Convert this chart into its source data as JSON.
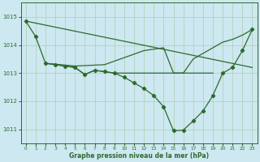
{
  "title": "Graphe pression niveau de la mer (hPa)",
  "bg_color": "#cde8f0",
  "grid_color": "#b0ccb0",
  "line_color": "#2d6a2d",
  "xlim": [
    -0.5,
    23.5
  ],
  "ylim": [
    1010.5,
    1015.5
  ],
  "yticks": [
    1011,
    1012,
    1013,
    1014,
    1015
  ],
  "xticks": [
    0,
    1,
    2,
    3,
    4,
    5,
    6,
    7,
    8,
    9,
    10,
    11,
    12,
    13,
    14,
    15,
    16,
    17,
    18,
    19,
    20,
    21,
    22,
    23
  ],
  "line_straight": {
    "x": [
      0,
      23
    ],
    "y": [
      1014.85,
      1013.2
    ]
  },
  "line_upper_arc": {
    "x": [
      2,
      5,
      8,
      10,
      12,
      14,
      15,
      16,
      17,
      18,
      19,
      20,
      21,
      22,
      23
    ],
    "y": [
      1013.35,
      1013.25,
      1013.3,
      1013.55,
      1013.8,
      1013.9,
      1013.0,
      1013.0,
      1013.5,
      1013.7,
      1013.9,
      1014.1,
      1014.2,
      1014.35,
      1014.55
    ]
  },
  "line_markers": {
    "x": [
      0,
      1,
      2,
      3,
      4,
      5,
      6,
      7,
      8,
      9,
      10,
      11,
      12,
      13,
      14,
      15,
      16,
      17,
      18,
      19,
      20,
      21,
      22,
      23
    ],
    "y": [
      1014.85,
      1014.3,
      1013.35,
      1013.3,
      1013.25,
      1013.2,
      1012.95,
      1013.1,
      1013.05,
      1013.0,
      1012.85,
      1012.65,
      1012.45,
      1012.2,
      1011.8,
      1010.95,
      1010.97,
      1011.3,
      1011.65,
      1012.2,
      1013.0,
      1013.2,
      1013.8,
      1014.55
    ]
  },
  "line_flat": {
    "x": [
      2,
      3,
      4,
      5,
      6,
      7,
      8,
      9,
      10,
      11,
      12,
      13,
      14,
      15,
      16,
      17,
      18,
      19
    ],
    "y": [
      1013.35,
      1013.3,
      1013.25,
      1013.2,
      1012.95,
      1013.1,
      1013.05,
      1013.0,
      1013.0,
      1013.0,
      1013.0,
      1013.0,
      1013.0,
      1013.0,
      1013.0,
      1013.0,
      1013.0,
      1013.0
    ]
  }
}
